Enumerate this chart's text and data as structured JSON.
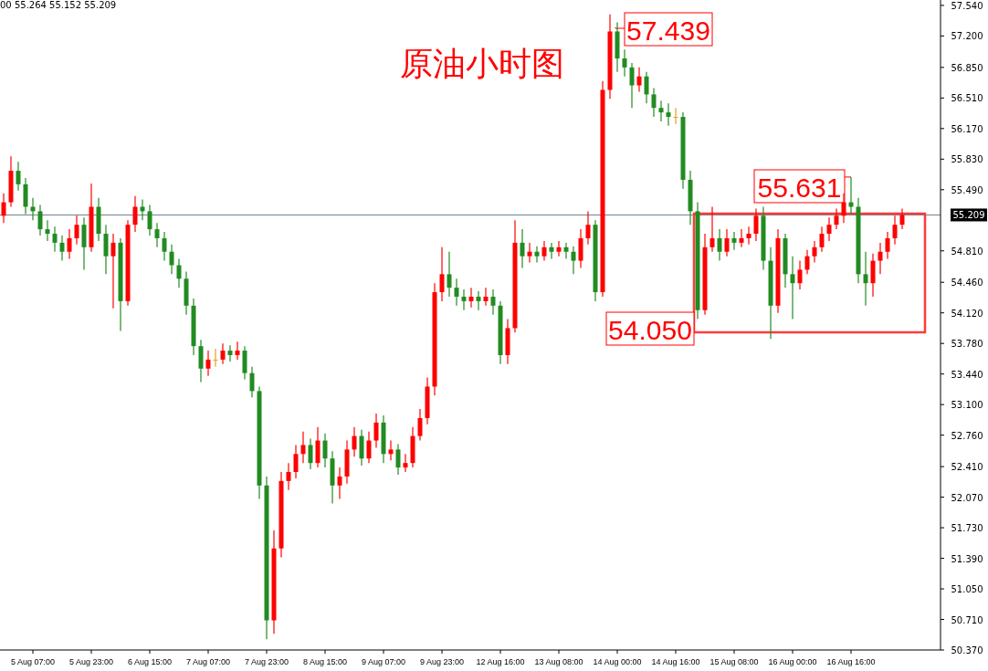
{
  "chart_data": {
    "type": "candlestick",
    "title": "原油小时图",
    "categories": [
      null,
      null,
      null,
      null,
      "5 Aug 07:00",
      null,
      null,
      null,
      null,
      null,
      null,
      null,
      "5 Aug 23:00",
      null,
      null,
      null,
      null,
      null,
      null,
      null,
      "6 Aug 15:00",
      null,
      null,
      null,
      null,
      null,
      null,
      null,
      "7 Aug 07:00",
      null,
      null,
      null,
      null,
      null,
      null,
      null,
      "7 Aug 23:00",
      null,
      null,
      null,
      null,
      null,
      null,
      null,
      "8 Aug 15:00",
      null,
      null,
      null,
      null,
      null,
      null,
      null,
      "9 Aug 07:00",
      null,
      null,
      null,
      null,
      null,
      null,
      null,
      "9 Aug 23:00",
      null,
      null,
      null,
      null,
      null,
      null,
      null,
      "12 Aug 16:00",
      null,
      null,
      null,
      null,
      null,
      null,
      null,
      "13 Aug 08:00",
      null,
      null,
      null,
      null,
      null,
      null,
      null,
      "14 Aug 00:00",
      null,
      null,
      null,
      null,
      null,
      null,
      null,
      "14 Aug 16:00",
      null,
      null,
      null,
      null,
      null,
      null,
      null,
      "15 Aug 08:00",
      null,
      null,
      null,
      null,
      null,
      null,
      null,
      "16 Aug 00:00",
      null,
      null,
      null,
      null,
      null,
      null,
      null,
      "16 Aug 16:00",
      null,
      null,
      null,
      null,
      null,
      null,
      null
    ],
    "ohlc": [
      [
        55.2,
        55.45,
        55.12,
        55.35
      ],
      [
        55.35,
        55.86,
        55.3,
        55.7
      ],
      [
        55.7,
        55.8,
        55.48,
        55.55
      ],
      [
        55.55,
        55.62,
        55.22,
        55.3
      ],
      [
        55.3,
        55.4,
        55.15,
        55.25
      ],
      [
        55.25,
        55.32,
        54.98,
        55.05
      ],
      [
        55.05,
        55.15,
        54.92,
        55.0
      ],
      [
        55.0,
        55.08,
        54.8,
        54.9
      ],
      [
        54.9,
        54.98,
        54.7,
        54.8
      ],
      [
        54.8,
        55.05,
        54.72,
        54.95
      ],
      [
        54.95,
        55.2,
        54.88,
        55.1
      ],
      [
        55.1,
        55.18,
        54.6,
        54.85
      ],
      [
        54.85,
        55.56,
        54.8,
        55.3
      ],
      [
        55.3,
        55.4,
        54.92,
        55.0
      ],
      [
        55.0,
        55.1,
        54.55,
        54.75
      ],
      [
        54.75,
        55.0,
        54.17,
        54.9
      ],
      [
        54.9,
        54.95,
        53.92,
        54.25
      ],
      [
        54.25,
        55.15,
        54.2,
        55.1
      ],
      [
        55.1,
        55.42,
        55.02,
        55.3
      ],
      [
        55.3,
        55.38,
        55.15,
        55.25
      ],
      [
        55.25,
        55.32,
        54.98,
        55.05
      ],
      [
        55.05,
        55.12,
        54.85,
        54.95
      ],
      [
        54.95,
        55.02,
        54.7,
        54.8
      ],
      [
        54.8,
        54.88,
        54.55,
        54.65
      ],
      [
        54.65,
        54.72,
        54.4,
        54.5
      ],
      [
        54.5,
        54.58,
        54.1,
        54.2
      ],
      [
        54.2,
        54.28,
        53.65,
        53.75
      ],
      [
        53.75,
        53.82,
        53.35,
        53.5
      ],
      [
        53.5,
        53.7,
        53.42,
        53.6
      ],
      [
        53.6,
        53.72,
        53.52,
        53.6
      ],
      [
        53.6,
        53.78,
        53.55,
        53.7
      ],
      [
        53.7,
        53.76,
        53.58,
        53.65
      ],
      [
        53.65,
        53.8,
        53.6,
        53.7
      ],
      [
        53.7,
        53.75,
        53.38,
        53.45
      ],
      [
        53.45,
        53.52,
        53.18,
        53.25
      ],
      [
        53.25,
        53.3,
        52.05,
        52.2
      ],
      [
        52.2,
        52.3,
        50.49,
        50.7
      ],
      [
        50.7,
        51.7,
        50.55,
        51.5
      ],
      [
        51.5,
        52.35,
        51.4,
        52.25
      ],
      [
        52.25,
        52.45,
        52.15,
        52.35
      ],
      [
        52.35,
        52.65,
        52.28,
        52.55
      ],
      [
        52.55,
        52.8,
        52.45,
        52.65
      ],
      [
        52.65,
        52.72,
        52.38,
        52.45
      ],
      [
        52.45,
        52.85,
        52.4,
        52.7
      ],
      [
        52.7,
        52.78,
        52.4,
        52.5
      ],
      [
        52.5,
        52.58,
        52.0,
        52.2
      ],
      [
        52.2,
        52.4,
        52.05,
        52.3
      ],
      [
        52.3,
        52.7,
        52.22,
        52.6
      ],
      [
        52.6,
        52.85,
        52.52,
        52.75
      ],
      [
        52.75,
        52.82,
        52.42,
        52.5
      ],
      [
        52.5,
        52.8,
        52.45,
        52.7
      ],
      [
        52.7,
        53.0,
        52.62,
        52.9
      ],
      [
        52.9,
        52.98,
        52.45,
        52.55
      ],
      [
        52.55,
        52.7,
        52.48,
        52.6
      ],
      [
        52.6,
        52.66,
        52.32,
        52.4
      ],
      [
        52.4,
        52.55,
        52.35,
        52.45
      ],
      [
        52.45,
        52.85,
        52.4,
        52.75
      ],
      [
        52.75,
        53.05,
        52.7,
        52.95
      ],
      [
        52.95,
        53.4,
        52.88,
        53.3
      ],
      [
        53.3,
        54.45,
        53.2,
        54.35
      ],
      [
        54.35,
        54.85,
        54.25,
        54.55
      ],
      [
        54.55,
        54.8,
        54.3,
        54.4
      ],
      [
        54.4,
        54.5,
        54.2,
        54.3
      ],
      [
        54.3,
        54.38,
        54.15,
        54.25
      ],
      [
        54.25,
        54.4,
        54.18,
        54.3
      ],
      [
        54.3,
        54.36,
        54.15,
        54.25
      ],
      [
        54.25,
        54.4,
        54.2,
        54.3
      ],
      [
        54.3,
        54.38,
        54.1,
        54.2
      ],
      [
        54.2,
        54.25,
        53.55,
        53.65
      ],
      [
        53.65,
        54.05,
        53.55,
        53.95
      ],
      [
        53.95,
        55.15,
        53.9,
        54.9
      ],
      [
        54.9,
        55.05,
        54.62,
        54.75
      ],
      [
        54.75,
        54.9,
        54.68,
        54.8
      ],
      [
        54.8,
        54.86,
        54.68,
        54.75
      ],
      [
        54.75,
        54.92,
        54.7,
        54.85
      ],
      [
        54.85,
        54.9,
        54.72,
        54.8
      ],
      [
        54.8,
        54.92,
        54.75,
        54.85
      ],
      [
        54.85,
        54.9,
        54.72,
        54.8
      ],
      [
        54.8,
        54.86,
        54.55,
        54.7
      ],
      [
        54.7,
        55.05,
        54.62,
        54.95
      ],
      [
        54.95,
        55.25,
        54.88,
        55.1
      ],
      [
        55.1,
        55.15,
        54.25,
        54.35
      ],
      [
        54.35,
        56.7,
        54.3,
        56.6
      ],
      [
        56.6,
        57.439,
        56.5,
        57.25
      ],
      [
        57.25,
        57.35,
        56.8,
        56.95
      ],
      [
        56.95,
        57.05,
        56.75,
        56.85
      ],
      [
        56.85,
        56.9,
        56.4,
        56.65
      ],
      [
        56.65,
        56.85,
        56.58,
        56.75
      ],
      [
        56.75,
        56.8,
        56.45,
        56.55
      ],
      [
        56.55,
        56.62,
        56.3,
        56.4
      ],
      [
        56.4,
        56.48,
        56.25,
        56.35
      ],
      [
        56.35,
        56.45,
        56.2,
        56.3
      ],
      [
        56.3,
        56.4,
        56.22,
        56.3
      ],
      [
        56.3,
        56.35,
        55.5,
        55.6
      ],
      [
        55.6,
        55.7,
        55.1,
        55.25
      ],
      [
        55.25,
        55.35,
        54.05,
        54.15
      ],
      [
        54.15,
        55.0,
        54.1,
        54.85
      ],
      [
        54.85,
        55.3,
        54.8,
        54.95
      ],
      [
        54.95,
        55.05,
        54.7,
        54.8
      ],
      [
        54.8,
        55.05,
        54.75,
        54.95
      ],
      [
        54.95,
        55.02,
        54.82,
        54.9
      ],
      [
        54.9,
        55.05,
        54.85,
        54.95
      ],
      [
        54.95,
        55.08,
        54.88,
        55.0
      ],
      [
        55.0,
        55.28,
        54.92,
        55.2
      ],
      [
        55.2,
        55.3,
        54.6,
        54.7
      ],
      [
        54.7,
        54.85,
        53.83,
        54.2
      ],
      [
        54.2,
        55.05,
        54.12,
        54.95
      ],
      [
        54.95,
        55.0,
        54.4,
        54.55
      ],
      [
        54.55,
        54.75,
        54.05,
        54.45
      ],
      [
        54.45,
        54.7,
        54.38,
        54.6
      ],
      [
        54.6,
        54.82,
        54.55,
        54.75
      ],
      [
        54.75,
        54.92,
        54.68,
        54.85
      ],
      [
        54.85,
        55.08,
        54.8,
        55.0
      ],
      [
        55.0,
        55.18,
        54.92,
        55.1
      ],
      [
        55.1,
        55.28,
        55.05,
        55.2
      ],
      [
        55.2,
        55.45,
        55.12,
        55.35
      ],
      [
        55.35,
        55.631,
        55.22,
        55.3
      ],
      [
        55.3,
        55.4,
        54.45,
        54.55
      ],
      [
        54.55,
        54.8,
        54.2,
        54.45
      ],
      [
        54.45,
        54.78,
        54.3,
        54.7
      ],
      [
        54.7,
        54.9,
        54.55,
        54.8
      ],
      [
        54.8,
        55.02,
        54.72,
        54.95
      ],
      [
        54.95,
        55.2,
        54.88,
        55.1
      ],
      [
        55.1,
        55.28,
        55.05,
        55.209
      ]
    ],
    "colors": [
      "#ff0000",
      "#ff0000",
      "#228b22",
      "#228b22",
      "#228b22",
      "#228b22",
      "#228b22",
      "#228b22",
      "#228b22",
      "#ff0000",
      "#ff0000",
      "#228b22",
      "#ff0000",
      "#228b22",
      "#228b22",
      "#ff0000",
      "#228b22",
      "#ff0000",
      "#ff0000",
      "#228b22",
      "#228b22",
      "#228b22",
      "#228b22",
      "#228b22",
      "#228b22",
      "#228b22",
      "#228b22",
      "#228b22",
      "#ff0000",
      "#daa520",
      "#ff0000",
      "#228b22",
      "#ff0000",
      "#228b22",
      "#228b22",
      "#228b22",
      "#228b22",
      "#ff0000",
      "#ff0000",
      "#ff0000",
      "#ff0000",
      "#ff0000",
      "#228b22",
      "#ff0000",
      "#228b22",
      "#228b22",
      "#ff0000",
      "#ff0000",
      "#ff0000",
      "#228b22",
      "#ff0000",
      "#ff0000",
      "#228b22",
      "#ff0000",
      "#228b22",
      "#ff0000",
      "#ff0000",
      "#ff0000",
      "#ff0000",
      "#ff0000",
      "#ff0000",
      "#228b22",
      "#228b22",
      "#228b22",
      "#ff0000",
      "#228b22",
      "#ff0000",
      "#228b22",
      "#228b22",
      "#ff0000",
      "#ff0000",
      "#228b22",
      "#ff0000",
      "#228b22",
      "#ff0000",
      "#228b22",
      "#ff0000",
      "#228b22",
      "#228b22",
      "#ff0000",
      "#ff0000",
      "#228b22",
      "#ff0000",
      "#ff0000",
      "#228b22",
      "#228b22",
      "#228b22",
      "#ff0000",
      "#228b22",
      "#228b22",
      "#228b22",
      "#228b22",
      "#daa520",
      "#228b22",
      "#228b22",
      "#228b22",
      "#ff0000",
      "#ff0000",
      "#228b22",
      "#ff0000",
      "#228b22",
      "#ff0000",
      "#ff0000",
      "#ff0000",
      "#228b22",
      "#228b22",
      "#ff0000",
      "#228b22",
      "#228b22",
      "#ff0000",
      "#ff0000",
      "#ff0000",
      "#ff0000",
      "#ff0000",
      "#ff0000",
      "#ff0000",
      "#228b22",
      "#228b22",
      "#228b22",
      "#ff0000",
      "#ff0000",
      "#ff0000",
      "#ff0000",
      "#ff0000"
    ],
    "ylim": [
      50.37,
      57.6
    ],
    "yticks": [
      {
        "value": 57.54,
        "label": "57.540"
      },
      {
        "value": 57.2,
        "label": "57.200"
      },
      {
        "value": 56.85,
        "label": "56.850"
      },
      {
        "value": 56.51,
        "label": "56.510"
      },
      {
        "value": 56.17,
        "label": "56.170"
      },
      {
        "value": 55.83,
        "label": "55.830"
      },
      {
        "value": 55.49,
        "label": "55.490"
      },
      {
        "value": 54.81,
        "label": "54.810"
      },
      {
        "value": 54.46,
        "label": "54.460"
      },
      {
        "value": 54.12,
        "label": "54.120"
      },
      {
        "value": 53.78,
        "label": "53.780"
      },
      {
        "value": 53.44,
        "label": "53.440"
      },
      {
        "value": 53.1,
        "label": "53.100"
      },
      {
        "value": 52.76,
        "label": "52.760"
      },
      {
        "value": 52.41,
        "label": "52.410"
      },
      {
        "value": 52.07,
        "label": "52.070"
      },
      {
        "value": 51.73,
        "label": "51.730"
      },
      {
        "value": 51.39,
        "label": "51.390"
      },
      {
        "value": 51.05,
        "label": "51.050"
      },
      {
        "value": 50.71,
        "label": "50.710"
      },
      {
        "value": 50.37,
        "label": "50.370"
      }
    ],
    "ref_lines": [
      {
        "axis": "y",
        "value": 55.209,
        "label": "55.209",
        "color": "#708090"
      }
    ],
    "annotations": [
      "00 55.264 55.152 55.209",
      "57.439",
      {
        "text": "55.631",
        "x": "16 Aug 16:00",
        "y": 55.631
      },
      "54.050"
    ],
    "grid": false
  }
}
